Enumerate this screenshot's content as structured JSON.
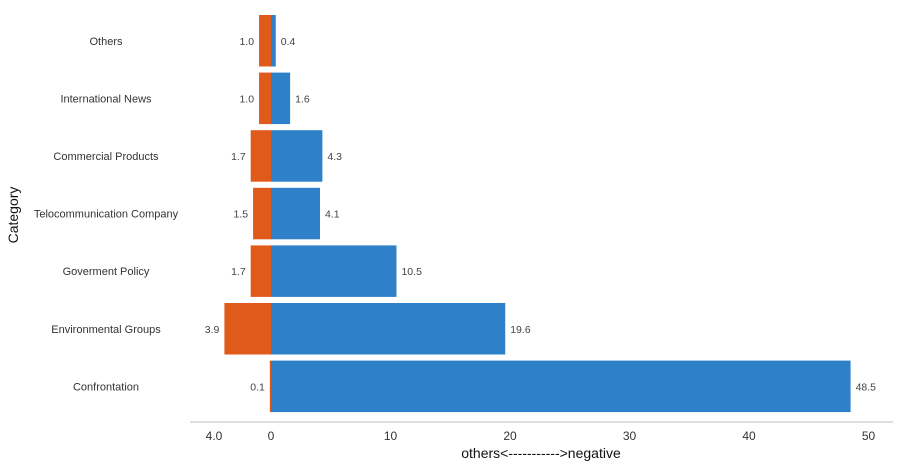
{
  "chart_data": {
    "type": "bar",
    "orientation": "horizontal",
    "diverging": true,
    "categories": [
      "Others",
      "International News",
      "Commercial Products",
      "Telocommunication Company",
      "Goverment Policy",
      "Environmental Groups",
      "Confrontation"
    ],
    "series": [
      {
        "values": [
          1.0,
          1.0,
          1.7,
          1.5,
          1.7,
          3.9,
          0.1
        ],
        "color": "#e05a1c",
        "direction": "left"
      },
      {
        "values": [
          0.4,
          1.6,
          4.3,
          4.1,
          10.5,
          19.6,
          48.5
        ],
        "color": "#2e80c8",
        "direction": "right"
      }
    ],
    "value_labels_left": [
      "1.0",
      "1.0",
      "1.7",
      "1.5",
      "1.7",
      "3.9",
      "0.1"
    ],
    "value_labels_right": [
      "0.4",
      "1.6",
      "4.3",
      "4.1",
      "10.5",
      "19.6",
      "48.5"
    ],
    "xticks": [
      {
        "value": -4,
        "label": "4.0"
      },
      {
        "value": 0,
        "label": "0"
      },
      {
        "value": 10,
        "label": "10"
      },
      {
        "value": 20,
        "label": "20"
      },
      {
        "value": 30,
        "label": "30"
      },
      {
        "value": 40,
        "label": "40"
      },
      {
        "value": 50,
        "label": "50"
      }
    ],
    "xlim": [
      -6.5,
      52
    ],
    "xlabel": "others<----------->negative",
    "ylabel": "Category",
    "grid": false,
    "legend": "none"
  }
}
